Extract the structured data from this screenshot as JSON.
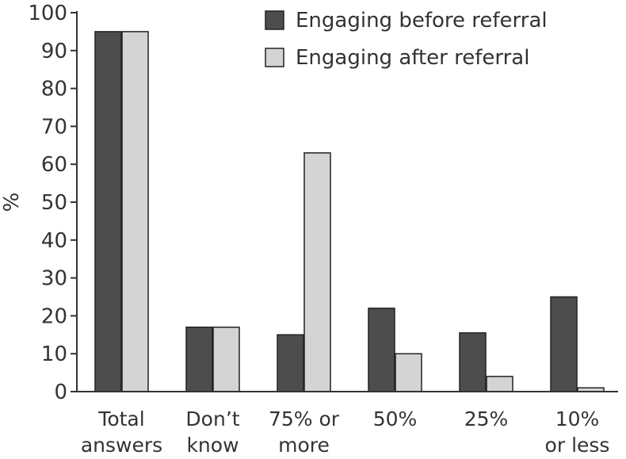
{
  "chart_data": {
    "type": "bar",
    "title": "",
    "xlabel": "",
    "ylabel": "%",
    "ylim": [
      0,
      100
    ],
    "yticks": [
      0,
      10,
      20,
      30,
      40,
      50,
      60,
      70,
      80,
      90,
      100
    ],
    "grid": false,
    "legend_position": "top-right",
    "categories": [
      [
        "Total",
        "answers"
      ],
      [
        "Don’t",
        "know"
      ],
      [
        "75% or",
        "more"
      ],
      [
        "50%"
      ],
      [
        "25%"
      ],
      [
        "10%",
        "or less"
      ]
    ],
    "series": [
      {
        "name": "Engaging before referral",
        "color": "#4d4d4d",
        "values": [
          95,
          17,
          15,
          22,
          15.5,
          25
        ]
      },
      {
        "name": "Engaging after referral",
        "color": "#d4d4d4",
        "values": [
          95,
          17,
          63,
          10,
          4,
          1
        ]
      }
    ]
  }
}
